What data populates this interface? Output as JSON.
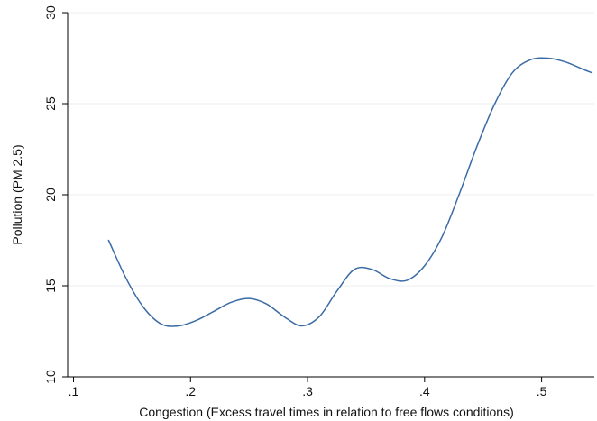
{
  "chart_data": {
    "type": "line",
    "xlabel": "Congestion (Excess travel times in relation to free flows conditions)",
    "ylabel": "Pollution (PM 2.5)",
    "xlim": [
      0.095,
      0.545
    ],
    "ylim": [
      10,
      30
    ],
    "x_ticks": [
      {
        "value": 0.1,
        "label": ".1"
      },
      {
        "value": 0.2,
        "label": ".2"
      },
      {
        "value": 0.3,
        "label": ".3"
      },
      {
        "value": 0.4,
        "label": ".4"
      },
      {
        "value": 0.5,
        "label": ".5"
      }
    ],
    "y_ticks": [
      {
        "value": 10,
        "label": "10"
      },
      {
        "value": 15,
        "label": "15"
      },
      {
        "value": 20,
        "label": "20"
      },
      {
        "value": 25,
        "label": "25"
      },
      {
        "value": 30,
        "label": "30"
      }
    ],
    "grid": "horizontal",
    "color": "#3a6ba5",
    "series": [
      {
        "x": [
          0.13,
          0.145,
          0.16,
          0.175,
          0.19,
          0.205,
          0.22,
          0.235,
          0.25,
          0.265,
          0.28,
          0.295,
          0.31,
          0.325,
          0.34,
          0.355,
          0.37,
          0.385,
          0.4,
          0.415,
          0.43,
          0.445,
          0.46,
          0.475,
          0.49,
          0.505,
          0.52,
          0.535,
          0.543
        ],
        "y": [
          17.5,
          15.4,
          13.8,
          12.9,
          12.8,
          13.1,
          13.6,
          14.1,
          14.3,
          14.0,
          13.3,
          12.8,
          13.3,
          14.7,
          15.9,
          15.9,
          15.4,
          15.3,
          16.1,
          17.7,
          20.1,
          22.7,
          25.0,
          26.7,
          27.4,
          27.5,
          27.3,
          26.9,
          26.7
        ]
      }
    ]
  }
}
